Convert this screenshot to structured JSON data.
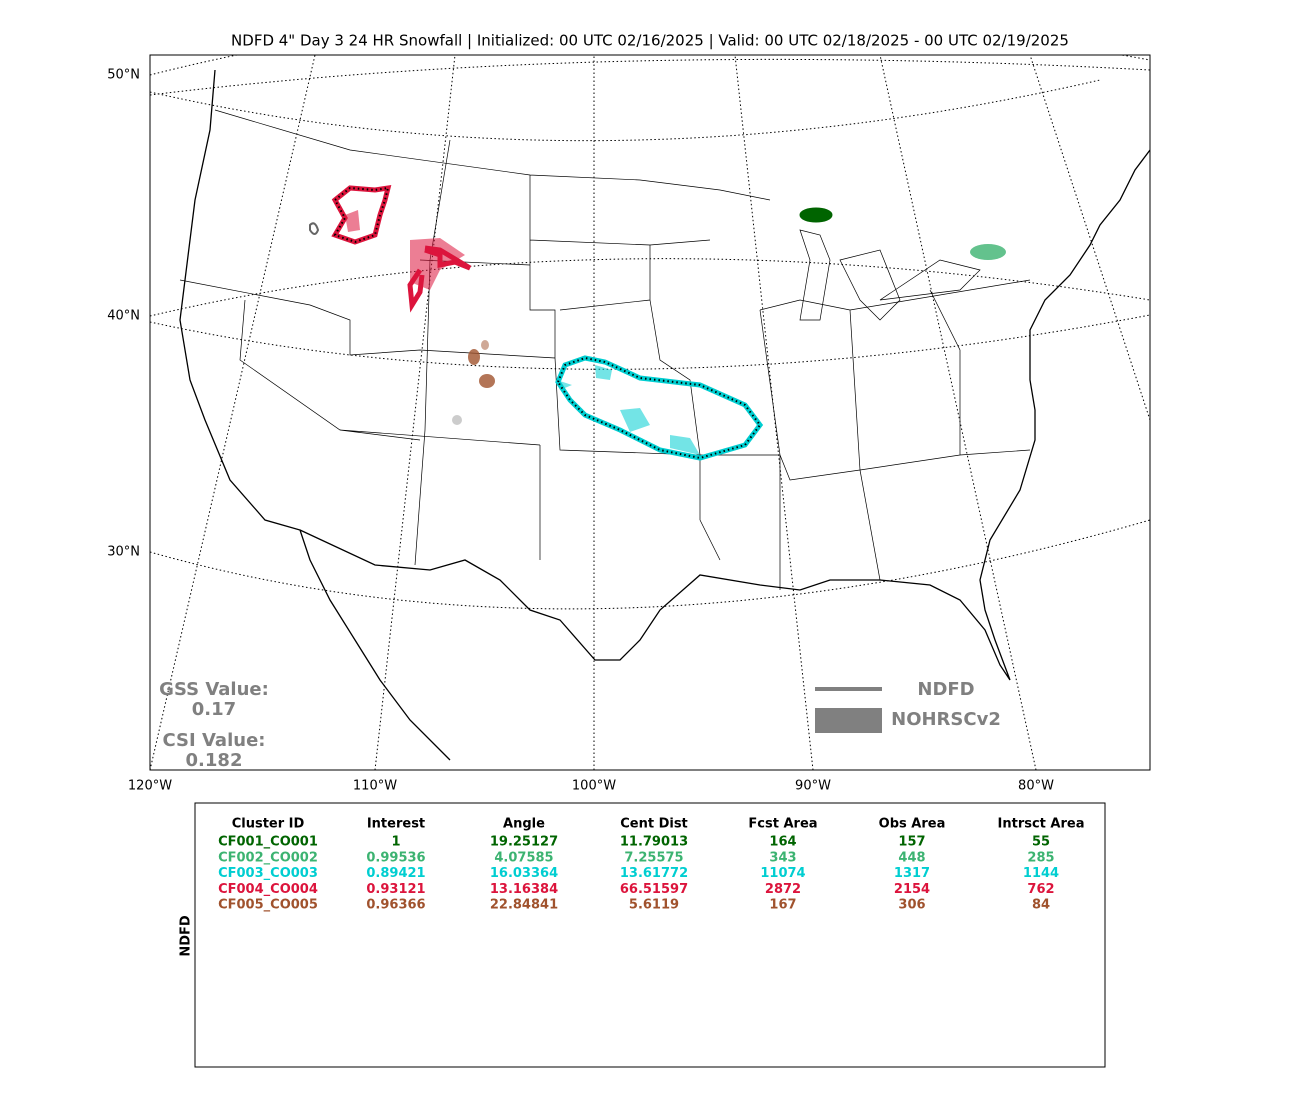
{
  "title": "NDFD 4\" Day 3 24 HR Snowfall | Initialized: 00 UTC 02/16/2025 | Valid: 00 UTC 02/18/2025 - 00 UTC 02/19/2025",
  "map": {
    "lat_labels": [
      "50°N",
      "40°N",
      "30°N"
    ],
    "lon_labels": [
      "120°W",
      "110°W",
      "100°W",
      "90°W",
      "80°W"
    ]
  },
  "scores": {
    "gss_label": "GSS Value:",
    "gss": "0.17",
    "csi_label": "CSI Value:",
    "csi": "0.182"
  },
  "legend": {
    "line": "NDFD",
    "fill": "NOHRSCv2"
  },
  "table": {
    "side_label": "NDFD",
    "header": [
      "Cluster ID",
      "Interest",
      "Angle",
      "Cent Dist",
      "Fcst Area",
      "Obs Area",
      "Intrsct Area"
    ],
    "rows": [
      {
        "color": "#006400",
        "cells": [
          "CF001_CO001",
          "1",
          "19.25127",
          "11.79013",
          "164",
          "157",
          "55"
        ]
      },
      {
        "color": "#3cb371",
        "cells": [
          "CF002_CO002",
          "0.99536",
          "4.07585",
          "7.25575",
          "343",
          "448",
          "285"
        ]
      },
      {
        "color": "#00ced1",
        "cells": [
          "CF003_CO003",
          "0.89421",
          "16.03364",
          "13.61772",
          "11074",
          "1317",
          "1144"
        ]
      },
      {
        "color": "#dc143c",
        "cells": [
          "CF004_CO004",
          "0.93121",
          "13.16384",
          "66.51597",
          "2872",
          "2154",
          "762"
        ]
      },
      {
        "color": "#a0522d",
        "cells": [
          "CF005_CO005",
          "0.96366",
          "22.84841",
          "5.6119",
          "167",
          "306",
          "84"
        ]
      }
    ]
  }
}
